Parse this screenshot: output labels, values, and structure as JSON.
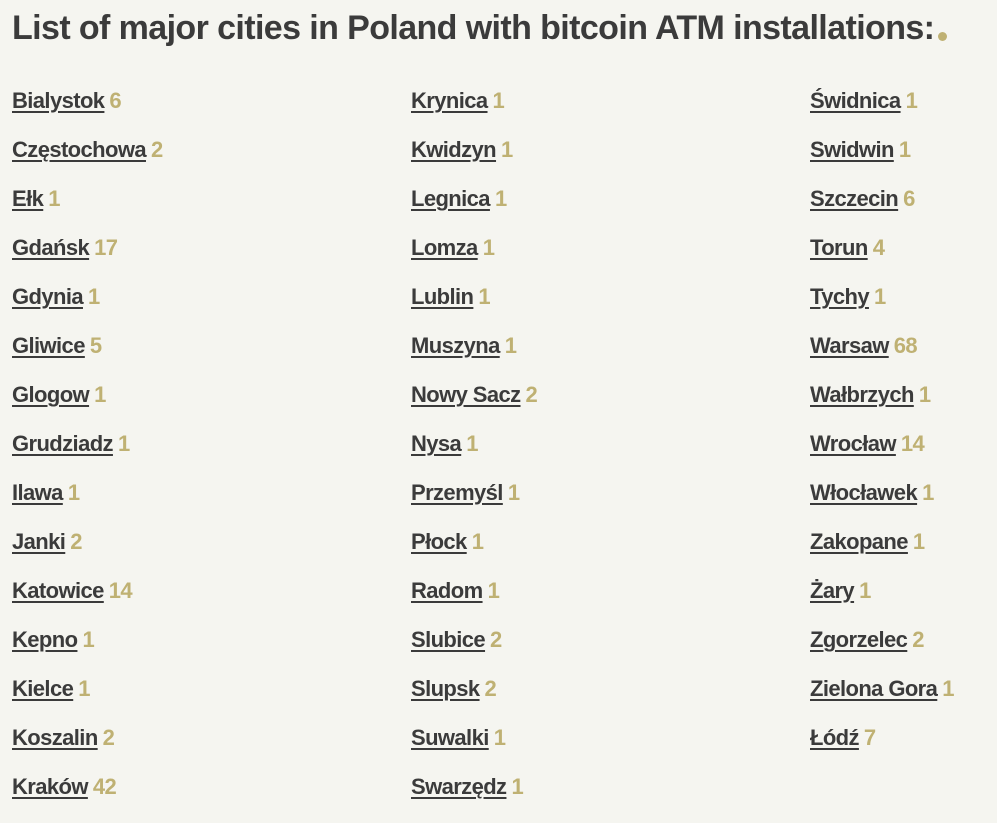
{
  "page": {
    "title": "List of major cities in Poland with bitcoin ATM installations:"
  },
  "colors": {
    "background": "#f5f5f0",
    "text": "#3b3b3b",
    "accent": "#bfb173"
  },
  "columns": [
    [
      {
        "name": "Bialystok",
        "count": "6"
      },
      {
        "name": "Częstochowa",
        "count": "2"
      },
      {
        "name": "Ełk",
        "count": "1"
      },
      {
        "name": "Gdańsk",
        "count": "17"
      },
      {
        "name": "Gdynia",
        "count": "1"
      },
      {
        "name": "Gliwice",
        "count": "5"
      },
      {
        "name": "Glogow",
        "count": "1"
      },
      {
        "name": "Grudziadz",
        "count": "1"
      },
      {
        "name": "Ilawa",
        "count": "1"
      },
      {
        "name": "Janki",
        "count": "2"
      },
      {
        "name": "Katowice",
        "count": "14"
      },
      {
        "name": "Kepno",
        "count": "1"
      },
      {
        "name": "Kielce",
        "count": "1"
      },
      {
        "name": "Koszalin",
        "count": "2"
      },
      {
        "name": "Kraków",
        "count": "42"
      }
    ],
    [
      {
        "name": "Krynica",
        "count": "1"
      },
      {
        "name": "Kwidzyn",
        "count": "1"
      },
      {
        "name": "Legnica",
        "count": "1"
      },
      {
        "name": "Lomza",
        "count": "1"
      },
      {
        "name": "Lublin",
        "count": "1"
      },
      {
        "name": "Muszyna",
        "count": "1"
      },
      {
        "name": "Nowy Sacz",
        "count": "2"
      },
      {
        "name": "Nysa",
        "count": "1"
      },
      {
        "name": "Przemyśl",
        "count": "1"
      },
      {
        "name": "Płock",
        "count": "1"
      },
      {
        "name": "Radom",
        "count": "1"
      },
      {
        "name": "Slubice",
        "count": "2"
      },
      {
        "name": "Slupsk",
        "count": "2"
      },
      {
        "name": "Suwalki",
        "count": "1"
      },
      {
        "name": "Swarzędz",
        "count": "1"
      }
    ],
    [
      {
        "name": "Świdnica",
        "count": "1"
      },
      {
        "name": "Swidwin",
        "count": "1"
      },
      {
        "name": "Szczecin",
        "count": "6"
      },
      {
        "name": "Torun",
        "count": "4"
      },
      {
        "name": "Tychy",
        "count": "1"
      },
      {
        "name": "Warsaw",
        "count": "68"
      },
      {
        "name": "Wałbrzych",
        "count": "1"
      },
      {
        "name": "Wrocław",
        "count": "14"
      },
      {
        "name": "Włocławek",
        "count": "1"
      },
      {
        "name": "Zakopane",
        "count": "1"
      },
      {
        "name": "Żary",
        "count": "1"
      },
      {
        "name": "Zgorzelec",
        "count": "2"
      },
      {
        "name": "Zielona Gora",
        "count": "1"
      },
      {
        "name": "Łódź",
        "count": "7"
      }
    ]
  ]
}
